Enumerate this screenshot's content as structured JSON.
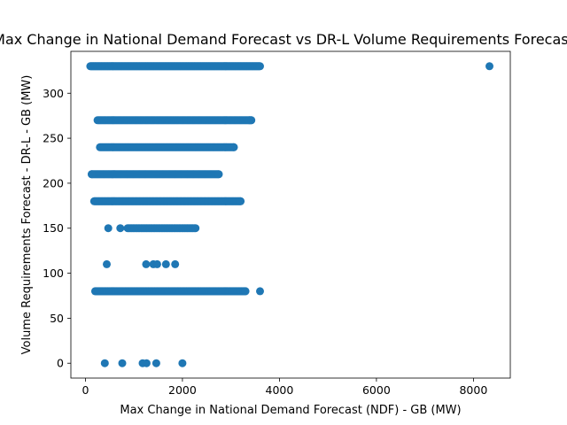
{
  "chart_data": {
    "type": "scatter",
    "title": "Max Change in National Demand Forecast vs DR-L Volume Requirements Forecast",
    "xlabel": "Max Change in National Demand Forecast (NDF) - GB (MW)",
    "ylabel": "Volume Requirements Forecast - DR-L - GB (MW)",
    "xlim": [
      -300,
      8760
    ],
    "ylim": [
      -16.5,
      346.5
    ],
    "xticks": [
      0,
      2000,
      4000,
      6000,
      8000
    ],
    "yticks": [
      0,
      50,
      100,
      150,
      200,
      250,
      300
    ],
    "grid": false,
    "color": "#1f77b4",
    "bands": [
      {
        "y": 330,
        "x_start": 100,
        "x_end": 3600,
        "step": 14
      },
      {
        "y": 270,
        "x_start": 250,
        "x_end": 3420,
        "step": 22
      },
      {
        "y": 240,
        "x_start": 300,
        "x_end": 3060,
        "step": 20
      },
      {
        "y": 210,
        "x_start": 130,
        "x_end": 2750,
        "step": 18
      },
      {
        "y": 180,
        "x_start": 180,
        "x_end": 3200,
        "step": 15
      },
      {
        "y": 150,
        "x_start": 870,
        "x_end": 2270,
        "step": 28
      },
      {
        "y": 80,
        "x_start": 200,
        "x_end": 3300,
        "step": 14
      }
    ],
    "points": [
      {
        "x": 8330,
        "y": 330
      },
      {
        "x": 3600,
        "y": 80
      },
      {
        "x": 3300,
        "y": 80
      },
      {
        "x": 3380,
        "y": 270
      },
      {
        "x": 3420,
        "y": 270
      },
      {
        "x": 3200,
        "y": 180
      },
      {
        "x": 2750,
        "y": 210
      },
      {
        "x": 3060,
        "y": 240
      },
      {
        "x": 130,
        "y": 210
      },
      {
        "x": 470,
        "y": 150
      },
      {
        "x": 720,
        "y": 150
      },
      {
        "x": 440,
        "y": 110
      },
      {
        "x": 1250,
        "y": 110
      },
      {
        "x": 1400,
        "y": 110
      },
      {
        "x": 1480,
        "y": 110
      },
      {
        "x": 1660,
        "y": 110
      },
      {
        "x": 1850,
        "y": 110
      },
      {
        "x": 400,
        "y": 0
      },
      {
        "x": 760,
        "y": 0
      },
      {
        "x": 1180,
        "y": 0
      },
      {
        "x": 1260,
        "y": 0
      },
      {
        "x": 1460,
        "y": 0
      },
      {
        "x": 2000,
        "y": 0
      }
    ]
  }
}
